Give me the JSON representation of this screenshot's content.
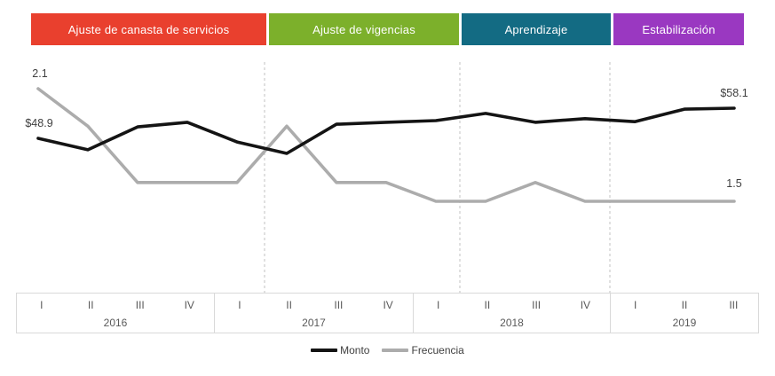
{
  "phases": [
    {
      "label": "Ajuste de canasta de servicios",
      "color": "#e9402e"
    },
    {
      "label": "Ajuste de vigencias",
      "color": "#7cb02b"
    },
    {
      "label": "Aprendizaje",
      "color": "#136b83"
    },
    {
      "label": "Estabilización",
      "color": "#9a38c1"
    }
  ],
  "chart_data": {
    "type": "line",
    "x_categories": [
      "2016 I",
      "2016 II",
      "2016 III",
      "2016 IV",
      "2017 I",
      "2017 II",
      "2017 III",
      "2017 IV",
      "2018 I",
      "2018 II",
      "2018 III",
      "2018 IV",
      "2019 I",
      "2019 II",
      "2019 III"
    ],
    "series": [
      {
        "name": "Monto",
        "color": "#141414",
        "values": [
          48.9,
          45.4,
          52.4,
          53.8,
          47.8,
          44.3,
          53.2,
          53.8,
          54.3,
          56.5,
          53.8,
          54.9,
          54.0,
          57.8,
          58.1
        ],
        "first_point_label": "$48.9",
        "last_point_label": "$58.1"
      },
      {
        "name": "Frecuencia",
        "color": "#acacac",
        "values": [
          2.1,
          1.9,
          1.6,
          1.6,
          1.6,
          1.9,
          1.6,
          1.6,
          1.5,
          1.5,
          1.6,
          1.5,
          1.5,
          1.5,
          1.5
        ],
        "first_point_label": "2.1",
        "last_point_label": "1.5"
      }
    ],
    "title": "",
    "xlabel": "",
    "ylabel": "",
    "legend_position": "bottom",
    "grid": "three dashed vertical lines at phase boundaries (between 2017-I|2017-II, 2018-I|2018-II, 2018-IV|2019-I)",
    "axes": "no visible y-axis; dual implicit scales (currency for Monto, count for Frecuencia)"
  },
  "axis": {
    "quarters": [
      "I",
      "II",
      "III",
      "IV",
      "I",
      "II",
      "III",
      "IV",
      "I",
      "II",
      "III",
      "IV",
      "I",
      "II",
      "III"
    ],
    "years": [
      "2016",
      "2017",
      "2018",
      "2019"
    ]
  }
}
